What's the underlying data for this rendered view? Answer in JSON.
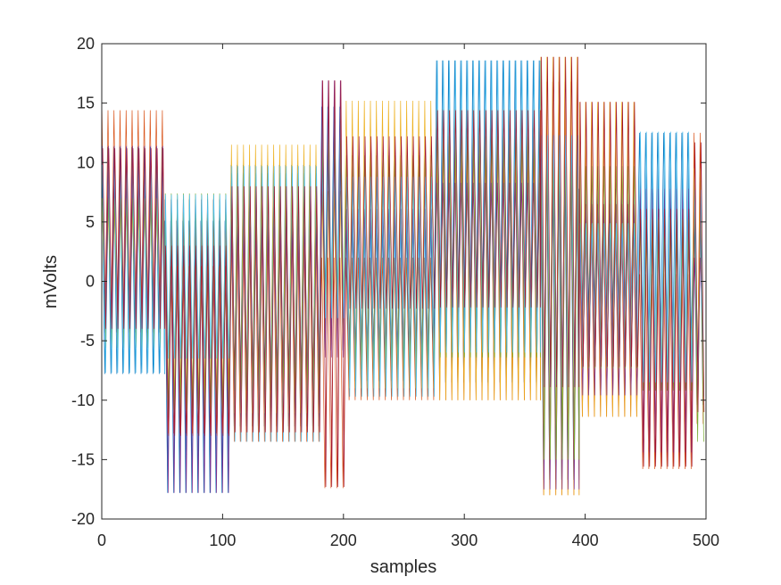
{
  "chart_data": {
    "type": "line",
    "title": "",
    "xlabel": "samples",
    "ylabel": "mVolts",
    "xlim": [
      0,
      500
    ],
    "ylim": [
      -20,
      20
    ],
    "x_ticks": [
      0,
      100,
      200,
      300,
      400,
      500
    ],
    "y_ticks": [
      -20,
      -15,
      -10,
      -5,
      0,
      5,
      10,
      15,
      20
    ],
    "x_tick_labels": [
      "0",
      "100",
      "200",
      "300",
      "400",
      "500"
    ],
    "y_tick_labels": [
      "-20",
      "-15",
      "-10",
      "-5",
      "0",
      "5",
      "10",
      "15",
      "20"
    ],
    "grid": false,
    "oscillation_period_samples": 5,
    "colors": [
      "#0072BD",
      "#D95319",
      "#EDB120",
      "#7E2F8E",
      "#77AC30",
      "#4DBEEE",
      "#A2142F"
    ],
    "segments": [
      {
        "x_start": 0,
        "x_end": 52,
        "ranges": [
          [
            -7.8,
            11.3
          ],
          [
            -4.3,
            14.4
          ],
          [
            -2.5,
            6.4
          ],
          [
            -4.1,
            11.4
          ],
          [
            -5.6,
            7.0
          ],
          [
            -7.7,
            9.8
          ],
          [
            -4.0,
            11.2
          ]
        ]
      },
      {
        "x_start": 52,
        "x_end": 107,
        "ranges": [
          [
            -17.8,
            5.1
          ],
          [
            -12.8,
            1.3
          ],
          [
            -10.8,
            5.3
          ],
          [
            -17.8,
            6.9
          ],
          [
            -11.3,
            7.4
          ],
          [
            -6.5,
            7.3
          ],
          [
            -13.0,
            3.0
          ]
        ]
      },
      {
        "x_start": 107,
        "x_end": 182,
        "ranges": [
          [
            -12.2,
            9.8
          ],
          [
            -13.5,
            5.2
          ],
          [
            -11.1,
            11.5
          ],
          [
            -7.4,
            4.6
          ],
          [
            -9.2,
            9.1
          ],
          [
            -13.5,
            9.7
          ],
          [
            -12.7,
            8.0
          ]
        ]
      },
      {
        "x_start": 182,
        "x_end": 202,
        "ranges": [
          [
            -5.8,
            14.7
          ],
          [
            -17.4,
            2.0
          ],
          [
            -6.4,
            7.6
          ],
          [
            -6.4,
            16.9
          ],
          [
            -2.0,
            12.1
          ],
          [
            -3.1,
            14.5
          ],
          [
            -17.3,
            16.9
          ]
        ]
      },
      {
        "x_start": 202,
        "x_end": 277,
        "ranges": [
          [
            -8.4,
            6.0
          ],
          [
            -10.0,
            2.0
          ],
          [
            -9.0,
            15.2
          ],
          [
            -5.6,
            6.1
          ],
          [
            -7.4,
            10.6
          ],
          [
            -9.7,
            8.8
          ],
          [
            -2.3,
            12.2
          ]
        ]
      },
      {
        "x_start": 277,
        "x_end": 363,
        "ranges": [
          [
            -8.5,
            18.6
          ],
          [
            -10.0,
            12.9
          ],
          [
            -10.0,
            14.5
          ],
          [
            -5.5,
            8.3
          ],
          [
            -6.4,
            12.2
          ],
          [
            -6.0,
            18.6
          ],
          [
            -2.2,
            14.4
          ]
        ]
      },
      {
        "x_start": 363,
        "x_end": 395,
        "ranges": [
          [
            -16.7,
            12.5
          ],
          [
            -18.0,
            16.8
          ],
          [
            -18.0,
            18.9
          ],
          [
            -17.5,
            10.3
          ],
          [
            -15.0,
            10.9
          ],
          [
            -8.7,
            12.3
          ],
          [
            -8.9,
            18.9
          ]
        ]
      },
      {
        "x_start": 395,
        "x_end": 445,
        "ranges": [
          [
            -3.7,
            7.8
          ],
          [
            -11.4,
            4.7
          ],
          [
            -11.4,
            15.1
          ],
          [
            -9.6,
            6.5
          ],
          [
            -7.3,
            9.7
          ],
          [
            -6.4,
            4.9
          ],
          [
            -7.2,
            15.1
          ]
        ]
      },
      {
        "x_start": 445,
        "x_end": 490,
        "ranges": [
          [
            -6.0,
            12.5
          ],
          [
            -15.8,
            0.6
          ],
          [
            -9.0,
            5.3
          ],
          [
            -14.4,
            7.8
          ],
          [
            -9.2,
            5.2
          ],
          [
            -8.5,
            12.6
          ],
          [
            -15.6,
            6.1
          ]
        ]
      },
      {
        "x_start": 490,
        "x_end": 500,
        "ranges": [
          [
            -10.4,
            7.1
          ],
          [
            -12.0,
            12.5
          ],
          [
            -8.2,
            9.5
          ],
          [
            -6.8,
            2.0
          ],
          [
            -13.5,
            8.5
          ],
          [
            -9.7,
            7.7
          ],
          [
            -11.0,
            11.7
          ]
        ]
      }
    ]
  }
}
